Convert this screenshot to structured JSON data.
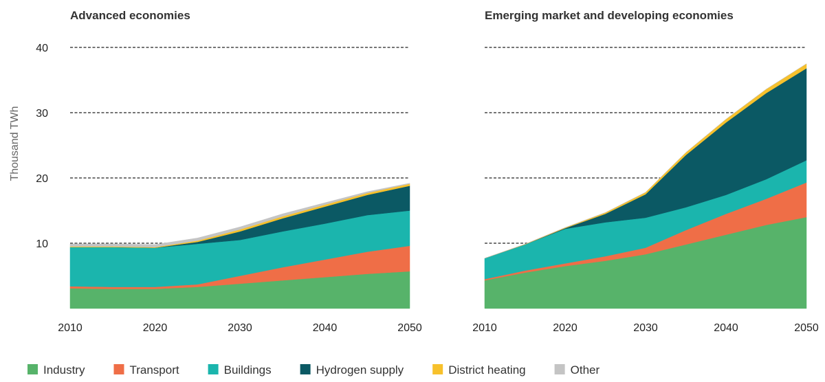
{
  "chart_data": [
    {
      "type": "stacked_area",
      "title": "Advanced economies",
      "ylabel": "Thousand TWh",
      "x": [
        2010,
        2015,
        2020,
        2025,
        2030,
        2035,
        2040,
        2045,
        2050
      ],
      "xlim": [
        2010,
        2050
      ],
      "xticks": [
        2010,
        2020,
        2030,
        2040,
        2050
      ],
      "ylim": [
        0,
        40
      ],
      "yticks": [
        10,
        20,
        30,
        40
      ],
      "ytick_labels": true,
      "grid": true,
      "series": [
        {
          "name": "Industry",
          "color": "#57b36a",
          "values": [
            3.1,
            3.0,
            3.0,
            3.3,
            3.8,
            4.3,
            4.8,
            5.3,
            5.7
          ]
        },
        {
          "name": "Transport",
          "color": "#ef6e47",
          "values": [
            0.3,
            0.3,
            0.3,
            0.4,
            1.2,
            2.0,
            2.7,
            3.4,
            3.9
          ]
        },
        {
          "name": "Buildings",
          "color": "#1bb5ad",
          "values": [
            6.0,
            6.1,
            6.0,
            6.2,
            5.5,
            5.5,
            5.5,
            5.6,
            5.4
          ]
        },
        {
          "name": "Hydrogen supply",
          "color": "#0b5964",
          "values": [
            0,
            0,
            0,
            0.3,
            1.3,
            2.0,
            2.6,
            3.1,
            3.8
          ]
        },
        {
          "name": "District heating",
          "color": "#f7c12c",
          "values": [
            0.1,
            0.1,
            0.1,
            0.2,
            0.3,
            0.3,
            0.3,
            0.3,
            0.3
          ]
        },
        {
          "name": "Other",
          "color": "#c4c4c4",
          "values": [
            0.4,
            0.4,
            0.4,
            0.4,
            0.4,
            0.4,
            0.3,
            0.2,
            0.1
          ]
        }
      ]
    },
    {
      "type": "stacked_area",
      "title": "Emerging market and developing economies",
      "x": [
        2010,
        2015,
        2020,
        2025,
        2030,
        2035,
        2040,
        2045,
        2050
      ],
      "xlim": [
        2010,
        2050
      ],
      "xticks": [
        2010,
        2020,
        2030,
        2040,
        2050
      ],
      "ylim": [
        0,
        40
      ],
      "yticks": [
        10,
        20,
        30,
        40
      ],
      "ytick_labels": false,
      "grid": true,
      "series": [
        {
          "color": "#57b36a",
          "values": [
            4.3,
            5.5,
            6.5,
            7.3,
            8.3,
            9.8,
            11.3,
            12.8,
            14.0
          ]
        },
        {
          "color": "#ef6e47",
          "values": [
            0.2,
            0.3,
            0.4,
            0.7,
            1.0,
            2.2,
            3.2,
            4.0,
            5.3
          ]
        },
        {
          "color": "#1bb5ad",
          "values": [
            3.2,
            4.0,
            5.3,
            5.2,
            4.6,
            3.5,
            2.9,
            3.0,
            3.4
          ]
        },
        {
          "color": "#0b5964",
          "values": [
            0,
            0,
            0.1,
            1.3,
            3.6,
            8.0,
            11.1,
            13.2,
            14.1
          ]
        },
        {
          "color": "#f7c12c",
          "values": [
            0,
            0.05,
            0.1,
            0.2,
            0.3,
            0.4,
            0.5,
            0.6,
            0.7
          ]
        },
        {
          "color": "#c4c4c4",
          "values": [
            0,
            0,
            0,
            0,
            0,
            0,
            0,
            0,
            0
          ]
        }
      ]
    }
  ]
}
